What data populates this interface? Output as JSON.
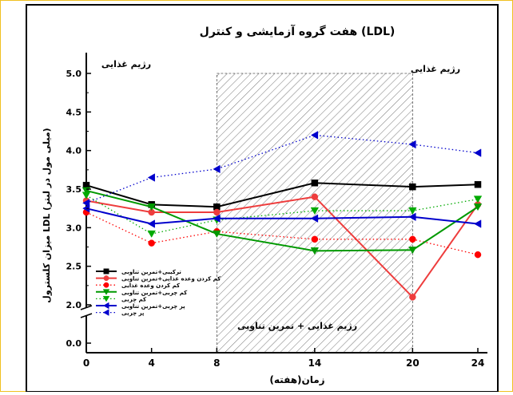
{
  "chart_data": {
    "type": "line",
    "title": "هفت گروه آزمایشی و کنترل (LDL)",
    "xlabel": "زمان(هفته)",
    "ylabel": "میزان کلسترول LDL (میلی مول در لیتر)",
    "x_ticks": [
      0,
      4,
      8,
      14,
      20,
      24
    ],
    "y_ticks": [
      "0.0",
      "2.0",
      "2.5",
      "3.0",
      "3.5",
      "4.0",
      "4.5",
      "5.0"
    ],
    "ylim": [
      0,
      5.0
    ],
    "y_break": [
      0.2,
      1.9
    ],
    "grid": false,
    "shaded_region": {
      "x_start": 8,
      "x_end": 20,
      "label": "رژیم غذایی + تمرین تناوبی"
    },
    "annotations": {
      "left": "رژیم غذایی",
      "right": "رژیم غذایی"
    },
    "legend_position": "bottom-left",
    "series": [
      {
        "name": "ترکیبی+تمرین تناوبی",
        "marker": "square",
        "line": "solid",
        "color": "#000000",
        "x": [
          0,
          4,
          8,
          14,
          20,
          24
        ],
        "y": [
          3.55,
          3.3,
          3.27,
          3.58,
          3.53,
          3.56
        ]
      },
      {
        "name": "کم کردن وعده غذایی+تمرین تناوبی",
        "marker": "circle",
        "line": "solid",
        "color": "#ee3d3d",
        "x": [
          0,
          4,
          8,
          14,
          20,
          24
        ],
        "y": [
          3.35,
          3.2,
          3.2,
          3.4,
          2.1,
          3.3
        ]
      },
      {
        "name": "کم کردن وعده غذایی",
        "marker": "circle",
        "line": "dotted",
        "color": "#ff0000",
        "x": [
          0,
          4,
          8,
          14,
          20,
          24
        ],
        "y": [
          3.2,
          2.8,
          2.95,
          2.85,
          2.85,
          2.65
        ]
      },
      {
        "name": "کم چربی+تمرین تناوبی",
        "marker": "triangle-down",
        "line": "solid",
        "color": "#009900",
        "x": [
          0,
          4,
          8,
          14,
          20,
          24
        ],
        "y": [
          3.48,
          3.27,
          2.92,
          2.7,
          2.71,
          3.27
        ]
      },
      {
        "name": "کم چربی",
        "marker": "triangle-down",
        "line": "dotted",
        "color": "#00aa00",
        "x": [
          0,
          4,
          8,
          14,
          20,
          24
        ],
        "y": [
          3.42,
          2.92,
          3.1,
          3.22,
          3.22,
          3.37
        ]
      },
      {
        "name": "پر چربی+تمرین تناوبی",
        "marker": "triangle-left",
        "line": "solid",
        "color": "#0000cc",
        "x": [
          0,
          4,
          8,
          14,
          20,
          24
        ],
        "y": [
          3.25,
          3.05,
          3.12,
          3.12,
          3.14,
          3.05
        ]
      },
      {
        "name": "پر چربی",
        "marker": "triangle-left",
        "line": "dotted",
        "color": "#0000cc",
        "x": [
          0,
          4,
          8,
          14,
          20,
          24
        ],
        "y": [
          3.32,
          3.65,
          3.76,
          4.2,
          4.08,
          3.97
        ]
      }
    ]
  }
}
